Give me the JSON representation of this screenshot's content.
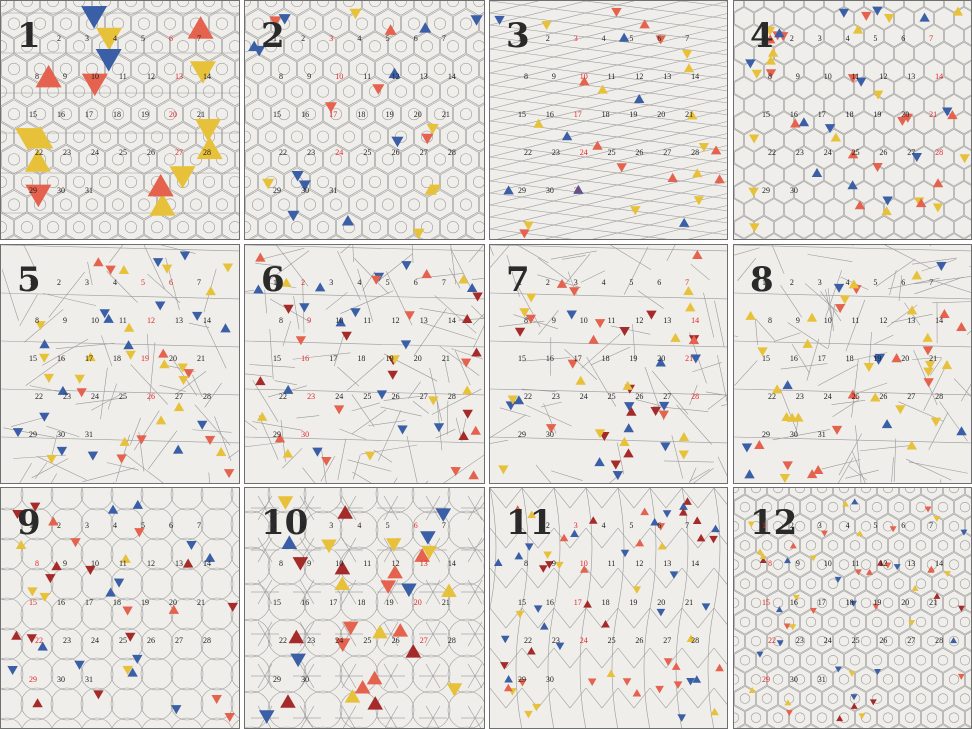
{
  "colors": {
    "background": "#efeeea",
    "lines": "#9a9a9a",
    "blue": "#3a5fa6",
    "red": "#e4624e",
    "yellow": "#e8c13a",
    "darkred": "#a52a2a",
    "label_red": "#e2262a",
    "label_black": "#1e1e1e"
  },
  "panels": [
    {
      "num": "1",
      "motif": "triangle-lattice",
      "labels": [
        "1",
        "2",
        "3",
        "4",
        "5",
        "6",
        "7",
        "8",
        "9",
        "10",
        "11",
        "12",
        "13",
        "14",
        "15",
        "16",
        "17",
        "18",
        "19",
        "20",
        "21",
        "22",
        "23",
        "24",
        "25",
        "26",
        "27",
        "28",
        "29",
        "30",
        "31"
      ],
      "red": [
        "6",
        "13",
        "20",
        "27"
      ]
    },
    {
      "num": "2",
      "motif": "hex-rosette",
      "labels": [
        "1",
        "2",
        "3",
        "4",
        "5",
        "6",
        "7",
        "8",
        "9",
        "10",
        "11",
        "12",
        "13",
        "14",
        "15",
        "16",
        "17",
        "18",
        "19",
        "20",
        "21",
        "22",
        "23",
        "24",
        "25",
        "26",
        "27",
        "28",
        "29",
        "30",
        "31"
      ],
      "red": [
        "3",
        "10",
        "17",
        "24"
      ]
    },
    {
      "num": "3",
      "motif": "diagonal-rows",
      "labels": [
        "1",
        "2",
        "3",
        "4",
        "5",
        "6",
        "7",
        "8",
        "9",
        "10",
        "11",
        "12",
        "13",
        "14",
        "15",
        "16",
        "17",
        "18",
        "19",
        "20",
        "21",
        "22",
        "23",
        "24",
        "25",
        "26",
        "27",
        "28",
        "29",
        "30",
        "31"
      ],
      "red": [
        "3",
        "10",
        "17",
        "24",
        "31"
      ]
    },
    {
      "num": "4",
      "motif": "small-flags",
      "labels": [
        "1",
        "2",
        "3",
        "4",
        "5",
        "6",
        "7",
        "8",
        "9",
        "10",
        "11",
        "12",
        "13",
        "14",
        "15",
        "16",
        "17",
        "18",
        "19",
        "20",
        "21",
        "22",
        "23",
        "24",
        "25",
        "26",
        "27",
        "28",
        "29",
        "30"
      ],
      "red": [
        "7",
        "14",
        "21",
        "28"
      ]
    },
    {
      "num": "5",
      "motif": "sparse-flags",
      "labels": [
        "1",
        "2",
        "3",
        "4",
        "5",
        "6",
        "7",
        "8",
        "9",
        "10",
        "11",
        "12",
        "13",
        "14",
        "15",
        "16",
        "17",
        "18",
        "19",
        "20",
        "21",
        "22",
        "23",
        "24",
        "25",
        "26",
        "27",
        "28",
        "29",
        "30",
        "31"
      ],
      "red": [
        "5",
        "6",
        "12",
        "19",
        "26"
      ]
    },
    {
      "num": "6",
      "motif": "dense-flags",
      "labels": [
        "1",
        "2",
        "3",
        "4",
        "5",
        "6",
        "7",
        "8",
        "9",
        "10",
        "11",
        "12",
        "13",
        "14",
        "15",
        "16",
        "17",
        "18",
        "19",
        "20",
        "21",
        "22",
        "23",
        "24",
        "25",
        "26",
        "27",
        "28",
        "29",
        "30"
      ],
      "red": [
        "2",
        "9",
        "16",
        "23",
        "30"
      ]
    },
    {
      "num": "7",
      "motif": "slim-flags",
      "labels": [
        "1",
        "2",
        "3",
        "4",
        "5",
        "6",
        "7",
        "8",
        "9",
        "10",
        "11",
        "12",
        "13",
        "14",
        "15",
        "16",
        "17",
        "18",
        "19",
        "20",
        "21",
        "22",
        "23",
        "24",
        "25",
        "26",
        "27",
        "28",
        "29",
        "30"
      ],
      "red": [
        "7",
        "14",
        "21",
        "28"
      ]
    },
    {
      "num": "8",
      "motif": "mid-flags",
      "labels": [
        "1",
        "2",
        "3",
        "4",
        "5",
        "6",
        "7",
        "8",
        "9",
        "10",
        "11",
        "12",
        "13",
        "14",
        "15",
        "16",
        "17",
        "18",
        "19",
        "20",
        "21",
        "22",
        "23",
        "24",
        "25",
        "26",
        "27",
        "28",
        "29",
        "30",
        "31"
      ],
      "red": []
    },
    {
      "num": "9",
      "motif": "circles",
      "labels": [
        "1",
        "2",
        "3",
        "4",
        "5",
        "6",
        "7",
        "8",
        "9",
        "10",
        "11",
        "12",
        "13",
        "14",
        "15",
        "16",
        "17",
        "18",
        "19",
        "20",
        "21",
        "22",
        "23",
        "24",
        "25",
        "26",
        "27",
        "28",
        "29",
        "30",
        "31"
      ],
      "red": [
        "8",
        "15",
        "22",
        "29"
      ]
    },
    {
      "num": "10",
      "motif": "big-circles",
      "labels": [
        "1",
        "2",
        "3",
        "4",
        "5",
        "6",
        "7",
        "8",
        "9",
        "10",
        "11",
        "12",
        "13",
        "14",
        "15",
        "16",
        "17",
        "18",
        "19",
        "20",
        "21",
        "22",
        "23",
        "24",
        "25",
        "26",
        "27",
        "28",
        "29",
        "30"
      ],
      "red": [
        "6",
        "13",
        "20",
        "27"
      ]
    },
    {
      "num": "11",
      "motif": "columns",
      "labels": [
        "1",
        "2",
        "3",
        "4",
        "5",
        "6",
        "7",
        "8",
        "9",
        "10",
        "11",
        "12",
        "13",
        "14",
        "15",
        "16",
        "17",
        "18",
        "19",
        "20",
        "21",
        "22",
        "23",
        "24",
        "25",
        "26",
        "27",
        "28",
        "29",
        "30"
      ],
      "red": [
        "3",
        "10",
        "17",
        "24"
      ]
    },
    {
      "num": "12",
      "motif": "dense-rosette",
      "labels": [
        "1",
        "2",
        "3",
        "4",
        "5",
        "6",
        "7",
        "8",
        "9",
        "10",
        "11",
        "12",
        "13",
        "14",
        "15",
        "16",
        "17",
        "18",
        "19",
        "20",
        "21",
        "22",
        "23",
        "24",
        "25",
        "26",
        "27",
        "28",
        "29",
        "30",
        "31"
      ],
      "red": [
        "1",
        "8",
        "15",
        "22",
        "29"
      ]
    }
  ]
}
